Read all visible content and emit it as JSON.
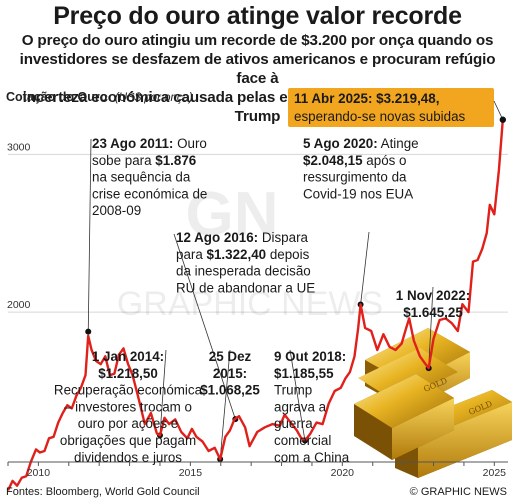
{
  "title": "Preço do ouro atinge valor recorde",
  "subtitle_lines": [
    "O preço do ouro atingiu um recorde de $3.200 por onça quando os",
    "investidores se desfazem de ativos americanos e procuram refúgio face à",
    "incerteza económica causada pelas erráticas tarifas do Presidente Trump"
  ],
  "footer": {
    "source": "Fontes: Bloomberg, World Gold Council",
    "brand": "© GRAPHIC NEWS"
  },
  "watermark": {
    "text": "GRAPHIC NEWS",
    "logo": "GN"
  },
  "colors": {
    "line": "#e0201b",
    "highlight": "#f2a51f",
    "grid": "#d6d6d6"
  },
  "chart_data": {
    "type": "line",
    "ylabel_main": "Cotação do Ouro",
    "ylabel_unit": "(US$ por onça)",
    "ylim": [
      1050,
      3300
    ],
    "xlim": [
      2009.0,
      2025.45
    ],
    "yticks": [
      {
        "v": 1000,
        "label": ""
      },
      {
        "v": 2000,
        "label": "2000"
      },
      {
        "v": 3000,
        "label": "3000"
      }
    ],
    "xticks": [
      {
        "v": 2010,
        "label": "2010"
      },
      {
        "v": 2015,
        "label": "2015"
      },
      {
        "v": 2020,
        "label": "2020"
      },
      {
        "v": 2025,
        "label": "2025"
      }
    ],
    "grid": "horizontal",
    "series": [
      {
        "x": [
          2009.0,
          2009.15,
          2009.3,
          2009.45,
          2009.6,
          2009.75,
          2009.92,
          2010.05,
          2010.2,
          2010.35,
          2010.5,
          2010.65,
          2010.8,
          2010.95,
          2011.1,
          2011.25,
          2011.4,
          2011.55,
          2011.64,
          2011.75,
          2011.9,
          2012.05,
          2012.2,
          2012.35,
          2012.5,
          2012.65,
          2012.8,
          2012.95,
          2013.1,
          2013.3,
          2013.5,
          2013.7,
          2013.9,
          2014.0,
          2014.15,
          2014.3,
          2014.5,
          2014.7,
          2014.9,
          2015.05,
          2015.2,
          2015.4,
          2015.6,
          2015.8,
          2015.98,
          2016.15,
          2016.3,
          2016.45,
          2016.6,
          2016.8,
          2016.95,
          2017.2,
          2017.45,
          2017.7,
          2017.95,
          2018.1,
          2018.3,
          2018.5,
          2018.65,
          2018.77,
          2018.95,
          2019.15,
          2019.35,
          2019.55,
          2019.75,
          2019.95,
          2020.1,
          2020.25,
          2020.4,
          2020.52,
          2020.6,
          2020.75,
          2020.95,
          2021.15,
          2021.35,
          2021.55,
          2021.75,
          2021.95,
          2022.1,
          2022.2,
          2022.35,
          2022.55,
          2022.7,
          2022.84,
          2023.0,
          2023.2,
          2023.4,
          2023.6,
          2023.8,
          2023.95,
          2024.15,
          2024.3,
          2024.45,
          2024.6,
          2024.75,
          2024.85,
          2025.0,
          2025.15,
          2025.28
        ],
        "y": [
          870,
          930,
          900,
          950,
          960,
          1050,
          1130,
          1110,
          1120,
          1200,
          1210,
          1300,
          1360,
          1410,
          1390,
          1470,
          1520,
          1600,
          1850,
          1760,
          1690,
          1670,
          1720,
          1600,
          1610,
          1730,
          1770,
          1670,
          1600,
          1450,
          1290,
          1360,
          1230,
          1219,
          1330,
          1290,
          1320,
          1240,
          1200,
          1260,
          1210,
          1180,
          1120,
          1140,
          1068,
          1210,
          1250,
          1320,
          1340,
          1270,
          1150,
          1240,
          1270,
          1290,
          1280,
          1350,
          1300,
          1250,
          1200,
          1186,
          1230,
          1300,
          1290,
          1420,
          1500,
          1520,
          1580,
          1620,
          1720,
          1900,
          2048,
          1900,
          1880,
          1760,
          1860,
          1780,
          1760,
          1800,
          1900,
          1960,
          1820,
          1720,
          1680,
          1645,
          1830,
          1950,
          1960,
          1930,
          1880,
          2050,
          2000,
          2320,
          2330,
          2400,
          2500,
          2680,
          2620,
          2900,
          3219
        ]
      }
    ],
    "annotations": [
      {
        "id": "ann-2011",
        "x": 2011.64,
        "y": 1876,
        "lines": [
          [
            {
              "t": "23 Ago 2011:",
              "b": true
            },
            {
              "t": " Ouro",
              "b": false
            }
          ],
          [
            {
              "t": "sobe para ",
              "b": false
            },
            {
              "t": "$1.876",
              "b": true
            }
          ],
          [
            {
              "t": "na sequência da",
              "b": false
            }
          ],
          [
            {
              "t": "crise económica de",
              "b": false
            }
          ],
          [
            {
              "t": "2008-09",
              "b": false
            }
          ]
        ]
      },
      {
        "id": "ann-2016",
        "x": 2016.48,
        "y": 1322,
        "lines": [
          [
            {
              "t": "12 Ago 2016:",
              "b": true
            },
            {
              "t": " Dispara",
              "b": false
            }
          ],
          [
            {
              "t": "para ",
              "b": false
            },
            {
              "t": "$1.322,40",
              "b": true
            },
            {
              "t": " depois",
              "b": false
            }
          ],
          [
            {
              "t": "da inesperada decisão",
              "b": false
            }
          ],
          [
            {
              "t": "RU de abandonar a UE",
              "b": false
            }
          ]
        ]
      },
      {
        "id": "ann-2020",
        "x": 2020.6,
        "y": 2048,
        "lines": [
          [
            {
              "t": "5 Ago 2020:",
              "b": true
            },
            {
              "t": " Atinge",
              "b": false
            }
          ],
          [
            {
              "t": "$2.048,15",
              "b": true
            },
            {
              "t": " após o",
              "b": false
            }
          ],
          [
            {
              "t": "ressurgimento da",
              "b": false
            }
          ],
          [
            {
              "t": "Covid-19 nos EUA",
              "b": false
            }
          ]
        ]
      },
      {
        "id": "ann-2022",
        "x": 2022.84,
        "y": 1645,
        "lines": [
          [
            {
              "t": "1 Nov 2022:",
              "b": true
            }
          ],
          [
            {
              "t": "$1.645,25",
              "b": true
            }
          ]
        ]
      },
      {
        "id": "ann-2014",
        "x": 2014.0,
        "y": 1219,
        "lines": [
          [
            {
              "t": "1 Jan 2014:",
              "b": true
            }
          ],
          [
            {
              "t": "$1.218,50",
              "b": true
            }
          ],
          [
            {
              "t": "Recuperação económica",
              "b": false
            }
          ],
          [
            {
              "t": "– investores trocam o",
              "b": false
            }
          ],
          [
            {
              "t": "ouro por ações e",
              "b": false
            }
          ],
          [
            {
              "t": "obrigações que pagam",
              "b": false
            }
          ],
          [
            {
              "t": "dividendos e juros",
              "b": false
            }
          ]
        ]
      },
      {
        "id": "ann-2015",
        "x": 2015.98,
        "y": 1068,
        "lines": [
          [
            {
              "t": "25 Dez",
              "b": true
            }
          ],
          [
            {
              "t": "2015:",
              "b": true
            }
          ],
          [
            {
              "t": "$1.068,25",
              "b": true
            }
          ]
        ]
      },
      {
        "id": "ann-2018",
        "x": 2018.77,
        "y": 1186,
        "lines": [
          [
            {
              "t": "9 Out 2018:",
              "b": true
            }
          ],
          [
            {
              "t": "$1.185,55",
              "b": true
            }
          ],
          [
            {
              "t": "Trump",
              "b": false
            }
          ],
          [
            {
              "t": "agrava a",
              "b": false
            }
          ],
          [
            {
              "t": "guerra",
              "b": false
            }
          ],
          [
            {
              "t": "comercial",
              "b": false
            }
          ],
          [
            {
              "t": "com a China",
              "b": false
            }
          ]
        ]
      }
    ],
    "highlight": {
      "x": 2025.28,
      "y": 3219.48,
      "line1": "11 Abr 2025: $3.219,48,",
      "line2": "esperando-se novas subidas"
    }
  }
}
